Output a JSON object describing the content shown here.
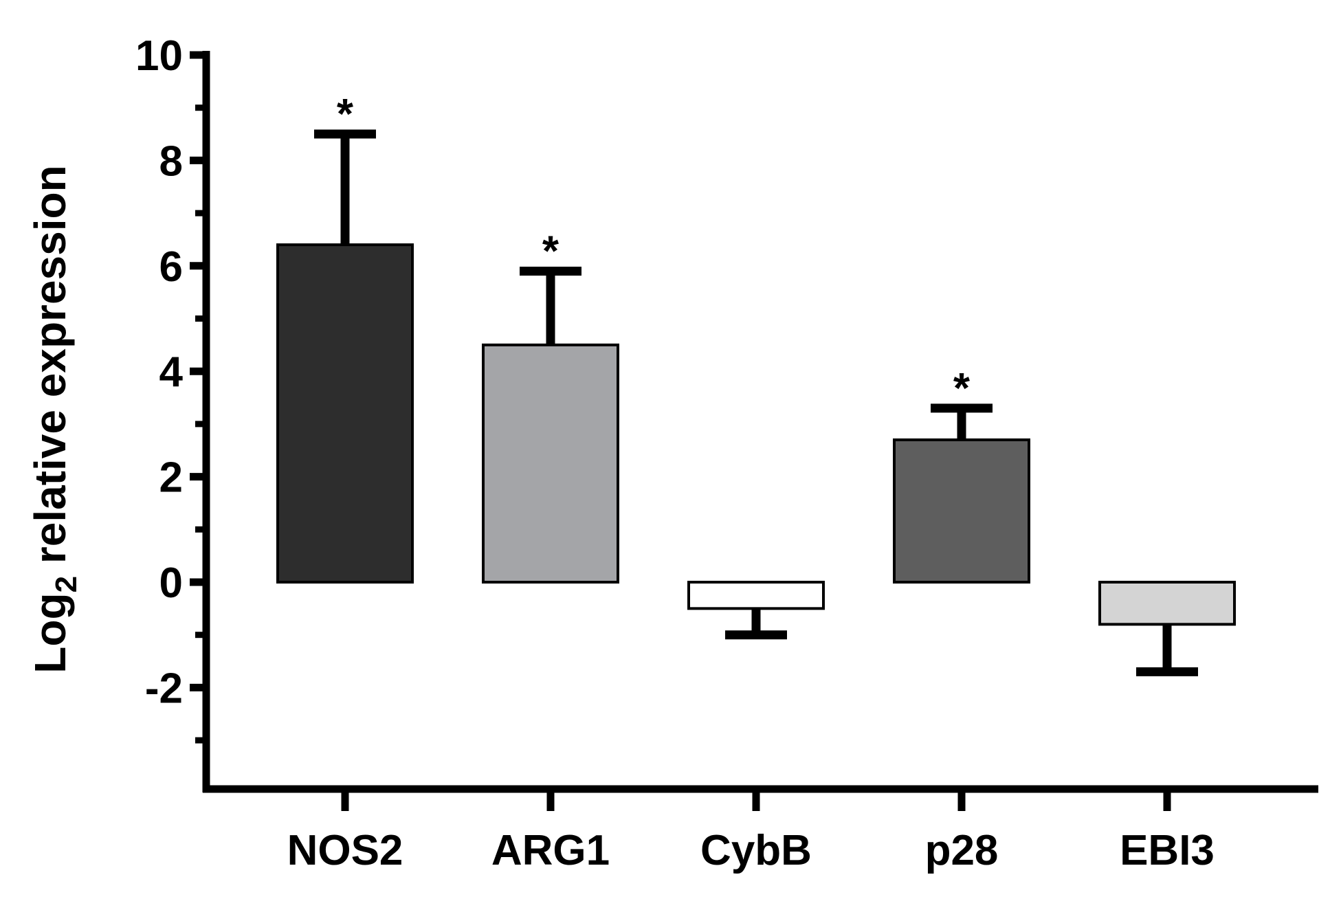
{
  "chart_data": {
    "type": "bar",
    "title": "",
    "xlabel": "",
    "ylabel": {
      "prefix": "Log",
      "subscript": "2",
      "suffix": " relative expression"
    },
    "ylim": [
      -4,
      10
    ],
    "yticks_major": [
      -2,
      0,
      2,
      4,
      6,
      8,
      10
    ],
    "ytick_labels": [
      "-2",
      "0",
      "2",
      "4",
      "6",
      "8",
      "10"
    ],
    "yticks_minor": [
      -3,
      -1,
      1,
      3,
      5,
      7,
      9
    ],
    "categories": [
      "NOS2",
      "ARG1",
      "CybB",
      "p28",
      "EBI3"
    ],
    "values": [
      6.4,
      4.5,
      -0.5,
      2.7,
      -0.8
    ],
    "errors": [
      2.1,
      1.4,
      0.5,
      0.6,
      0.9
    ],
    "significance": [
      "*",
      "*",
      "",
      "*",
      ""
    ],
    "colors": [
      "#2d2d2d",
      "#a4a5a8",
      "#ffffff",
      "#5e5e5e",
      "#d4d4d4"
    ],
    "grid": false,
    "legend": "none"
  }
}
